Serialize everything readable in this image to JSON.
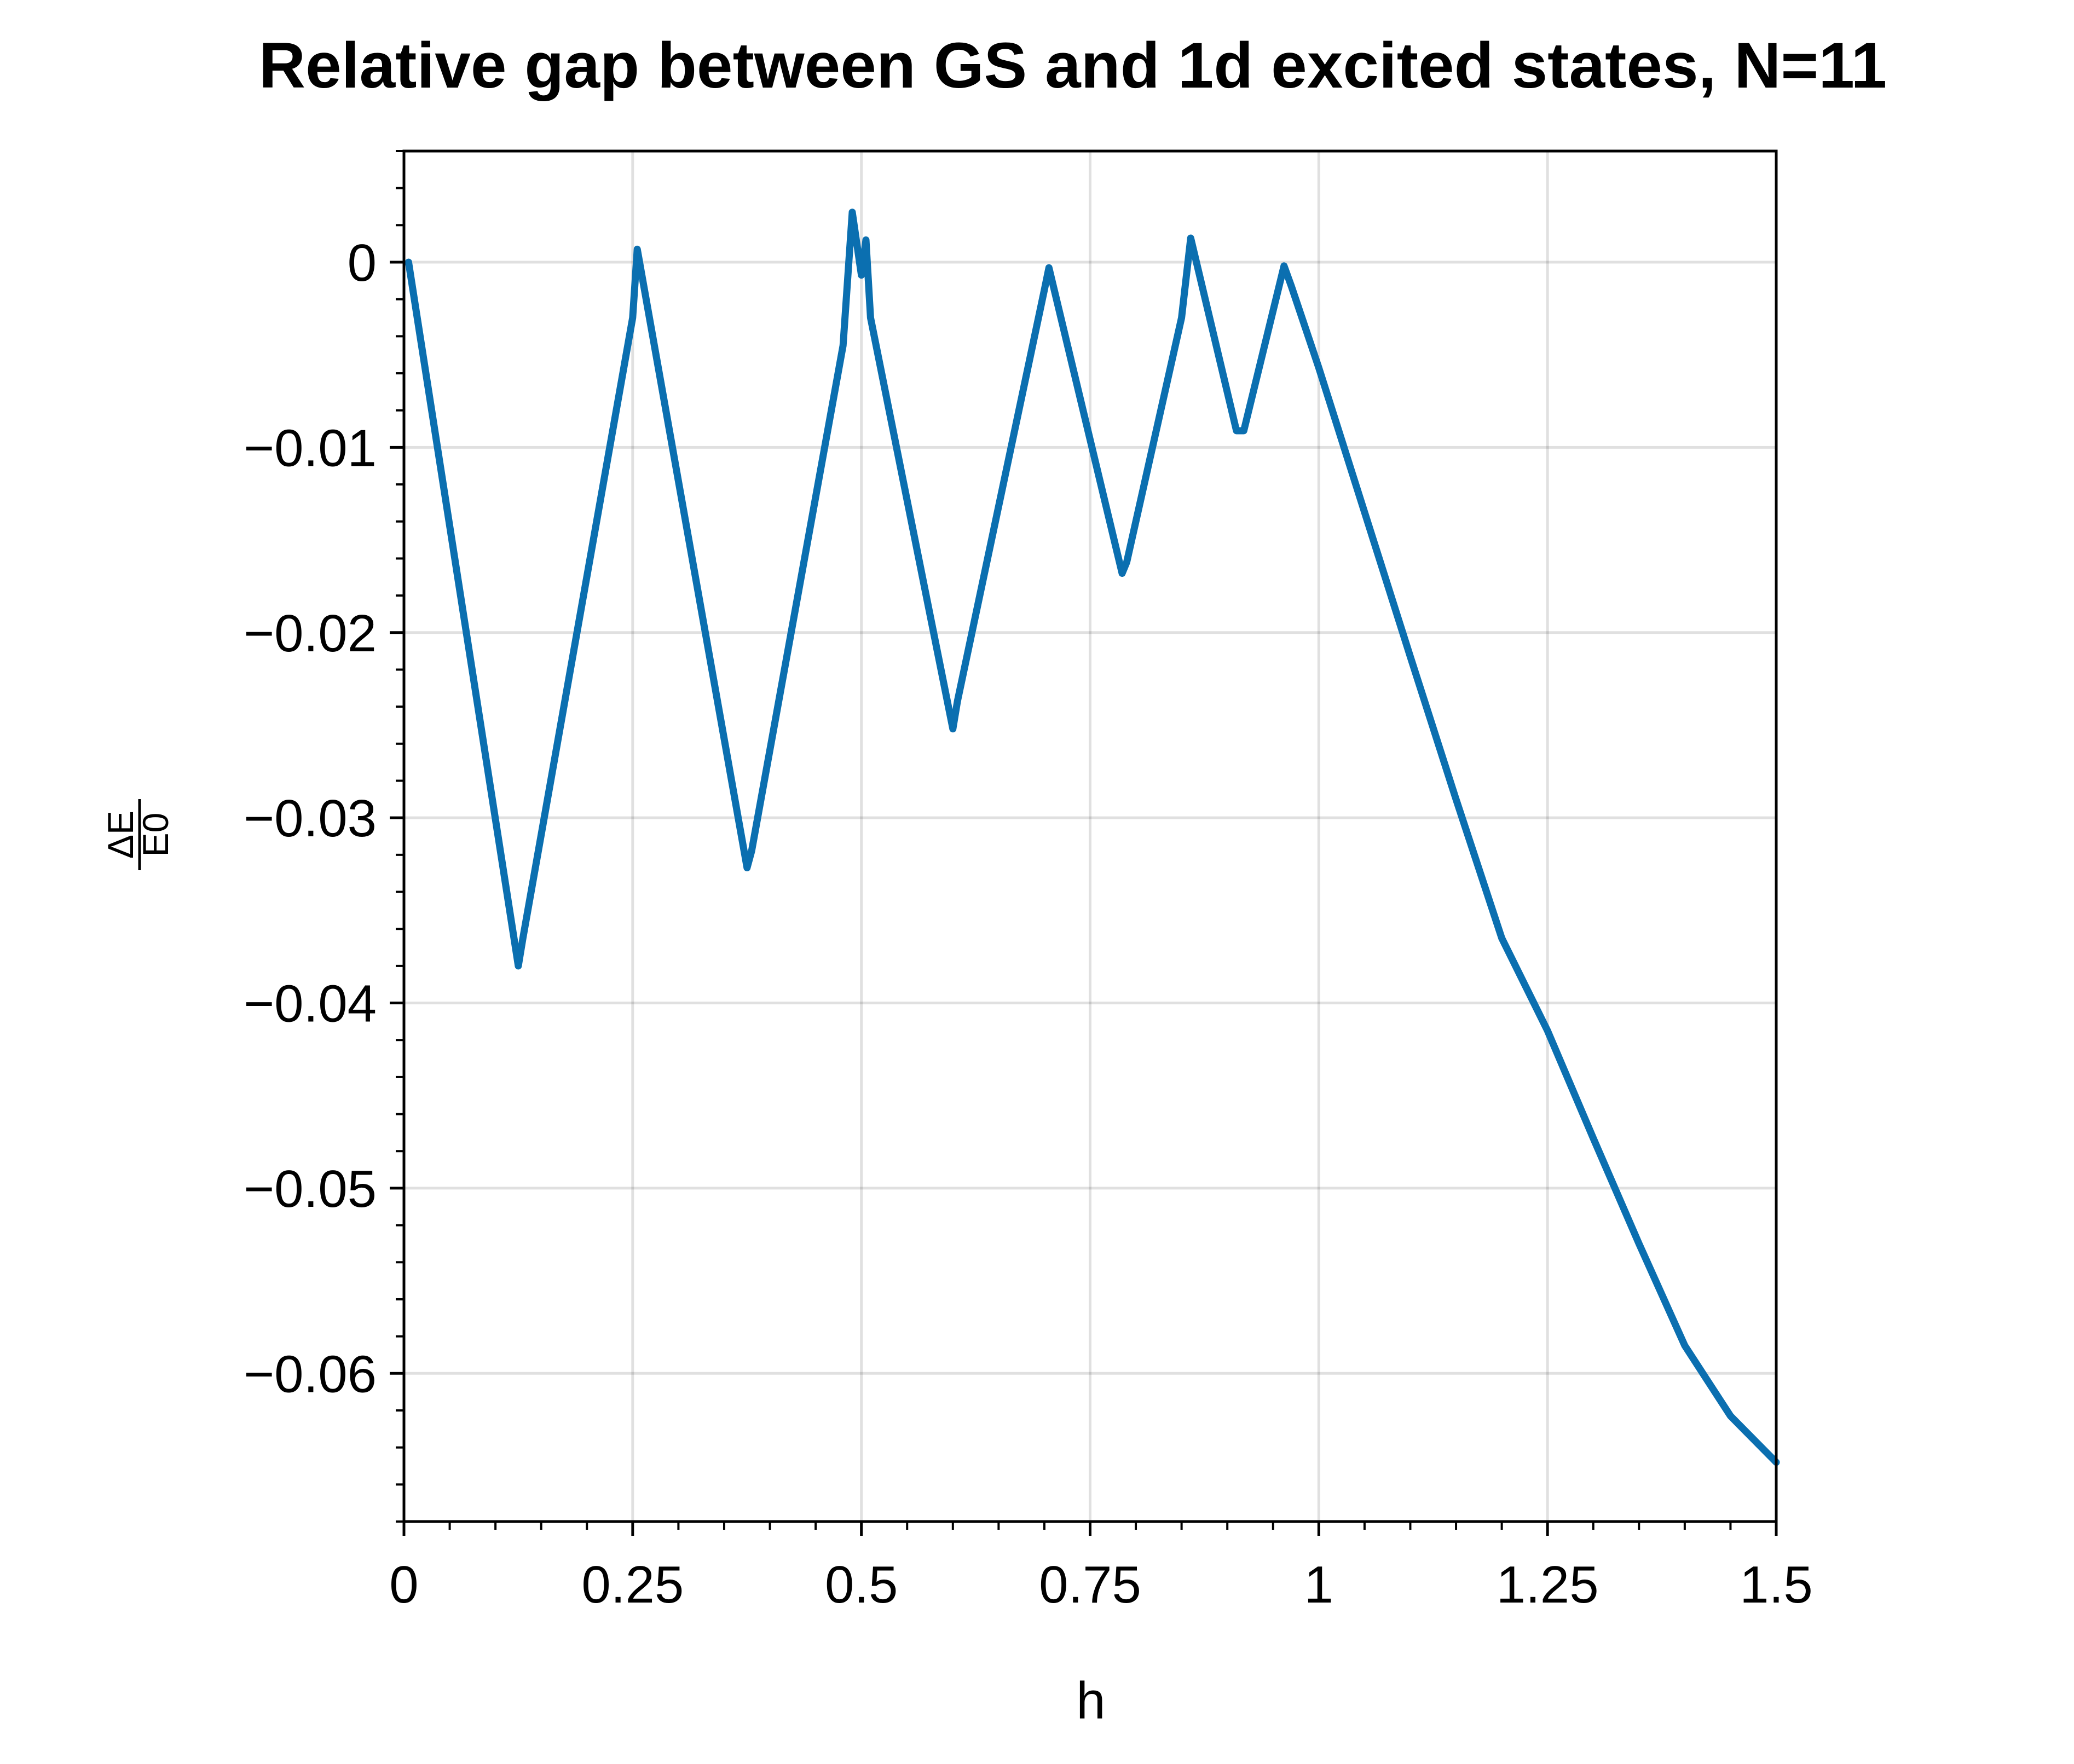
{
  "chart_data": {
    "type": "line",
    "title": "Relative gap between GS and 1d excited states, N=11",
    "xlabel": "h",
    "ylabel": {
      "numerator": "ΔE",
      "denominator": "E0"
    },
    "xlim": [
      0,
      1.5
    ],
    "ylim": [
      -0.068,
      0.006
    ],
    "grid": true,
    "xticks": [
      0,
      0.25,
      0.5,
      0.75,
      1,
      1.25,
      1.5
    ],
    "xtick_labels": [
      "0",
      "0.25",
      "0.5",
      "0.75",
      "1",
      "1.25",
      "1.5"
    ],
    "yticks": [
      0,
      -0.01,
      -0.02,
      -0.03,
      -0.04,
      -0.05,
      -0.06
    ],
    "ytick_labels": [
      "0",
      "−0.01",
      "−0.02",
      "−0.03",
      "−0.04",
      "−0.05",
      "−0.06"
    ],
    "series": [
      {
        "color": "#0b6fb0",
        "x": [
          0.005,
          0.125,
          0.13,
          0.25,
          0.255,
          0.375,
          0.38,
          0.48,
          0.49,
          0.5,
          0.505,
          0.51,
          0.6,
          0.605,
          0.7,
          0.705,
          0.785,
          0.79,
          0.85,
          0.86,
          0.91,
          0.918,
          0.962,
          0.97,
          1.0,
          1.05,
          1.1,
          1.15,
          1.2,
          1.25,
          1.3,
          1.35,
          1.4,
          1.45,
          1.5
        ],
        "y": [
          0.0,
          -0.038,
          -0.0365,
          -0.003,
          0.0007,
          -0.0327,
          -0.0318,
          -0.0045,
          0.0027,
          -0.0007,
          0.0012,
          -0.003,
          -0.0252,
          -0.0237,
          -0.0015,
          -0.0003,
          -0.0168,
          -0.0162,
          -0.003,
          0.0013,
          -0.0091,
          -0.0091,
          -0.0002,
          -0.0013,
          -0.0057,
          -0.0135,
          -0.0213,
          -0.029,
          -0.0365,
          -0.0415,
          -0.0473,
          -0.053,
          -0.0585,
          -0.0623,
          -0.0648
        ]
      }
    ]
  }
}
